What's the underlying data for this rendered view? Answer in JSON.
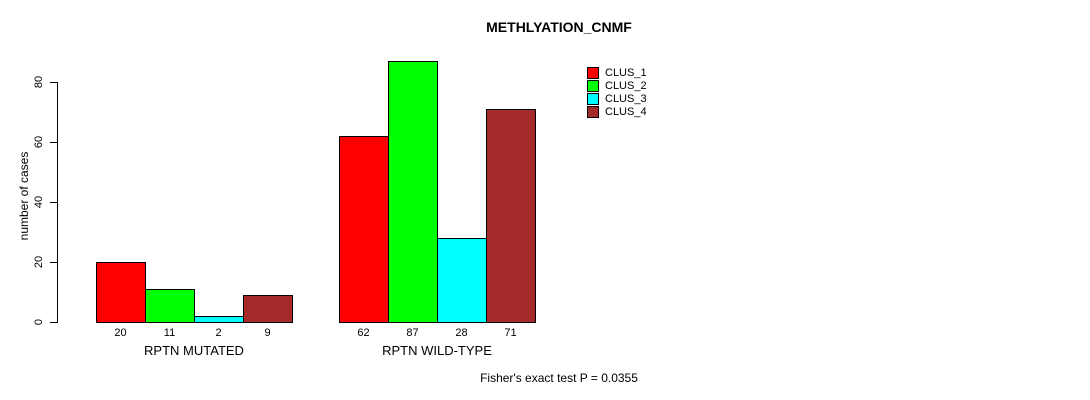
{
  "chart_data": {
    "type": "bar",
    "title": "METHLYATION_CNMF",
    "xlabel": "",
    "ylabel": "number of cases",
    "groups": [
      "RPTN MUTATED",
      "RPTN WILD-TYPE"
    ],
    "series": [
      {
        "name": "CLUS_1",
        "color": "#FF0000",
        "values": [
          20,
          62
        ]
      },
      {
        "name": "CLUS_2",
        "color": "#00FF00",
        "values": [
          11,
          87
        ]
      },
      {
        "name": "CLUS_3",
        "color": "#00FFFF",
        "values": [
          2,
          28
        ]
      },
      {
        "name": "CLUS_4",
        "color": "#A52A2A",
        "values": [
          9,
          71
        ]
      }
    ],
    "bar_value_labels": [
      [
        20,
        11,
        2,
        9
      ],
      [
        62,
        87,
        28,
        71
      ]
    ],
    "yticks": [
      0,
      20,
      40,
      60,
      80
    ],
    "ylim": [
      0,
      87
    ],
    "grid": false,
    "legend_position": "top-right",
    "legend_labels": [
      "CLUS_1",
      "CLUS_2",
      "CLUS_3",
      "CLUS_4"
    ],
    "annotation": "Fisher's exact test P = 0.0355"
  }
}
